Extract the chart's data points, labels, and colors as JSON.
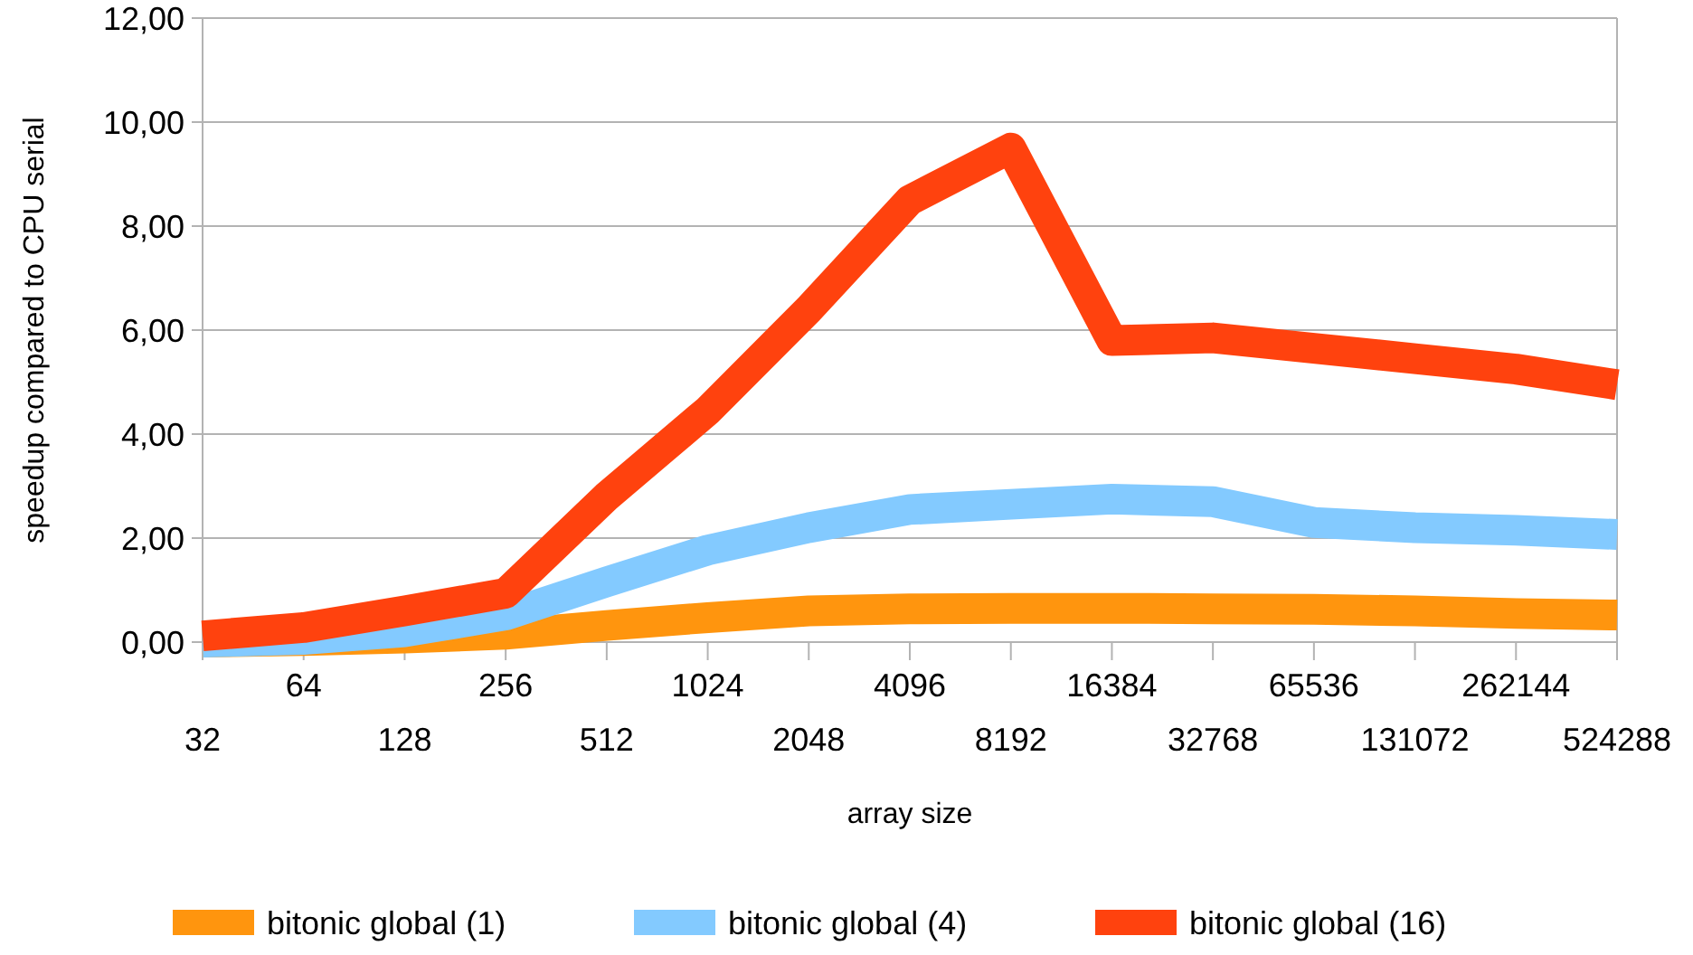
{
  "chart_data": {
    "type": "line",
    "xlabel": "array size",
    "ylabel": "speedup compared to CPU serial",
    "categories": [
      "32",
      "64",
      "128",
      "256",
      "512",
      "1024",
      "2048",
      "4096",
      "8192",
      "16384",
      "32768",
      "65536",
      "131072",
      "262144",
      "524288"
    ],
    "series": [
      {
        "name": "bitonic global (1)",
        "color": "#ff950e",
        "values": [
          0.0,
          0.03,
          0.08,
          0.15,
          0.32,
          0.47,
          0.6,
          0.64,
          0.65,
          0.65,
          0.64,
          0.63,
          0.6,
          0.55,
          0.52
        ]
      },
      {
        "name": "bitonic global (4)",
        "color": "#83caff",
        "values": [
          0.0,
          0.05,
          0.2,
          0.52,
          1.16,
          1.77,
          2.2,
          2.55,
          2.65,
          2.75,
          2.7,
          2.3,
          2.2,
          2.15,
          2.07
        ]
      },
      {
        "name": "bitonic global (16)",
        "color": "#ff420e",
        "values": [
          0.12,
          0.28,
          0.6,
          0.94,
          2.8,
          4.45,
          6.4,
          8.5,
          9.5,
          5.8,
          5.85,
          5.65,
          5.45,
          5.25,
          4.95
        ]
      }
    ],
    "ylim": [
      0,
      12
    ],
    "yticks": [
      {
        "value": 0,
        "label": "0,00"
      },
      {
        "value": 2,
        "label": "2,00"
      },
      {
        "value": 4,
        "label": "4,00"
      },
      {
        "value": 6,
        "label": "6,00"
      },
      {
        "value": 8,
        "label": "8,00"
      },
      {
        "value": 10,
        "label": "10,00"
      },
      {
        "value": 12,
        "label": "12,00"
      }
    ],
    "grid": "y",
    "legend": "bottom",
    "marker": "none",
    "line_style": "solid"
  }
}
